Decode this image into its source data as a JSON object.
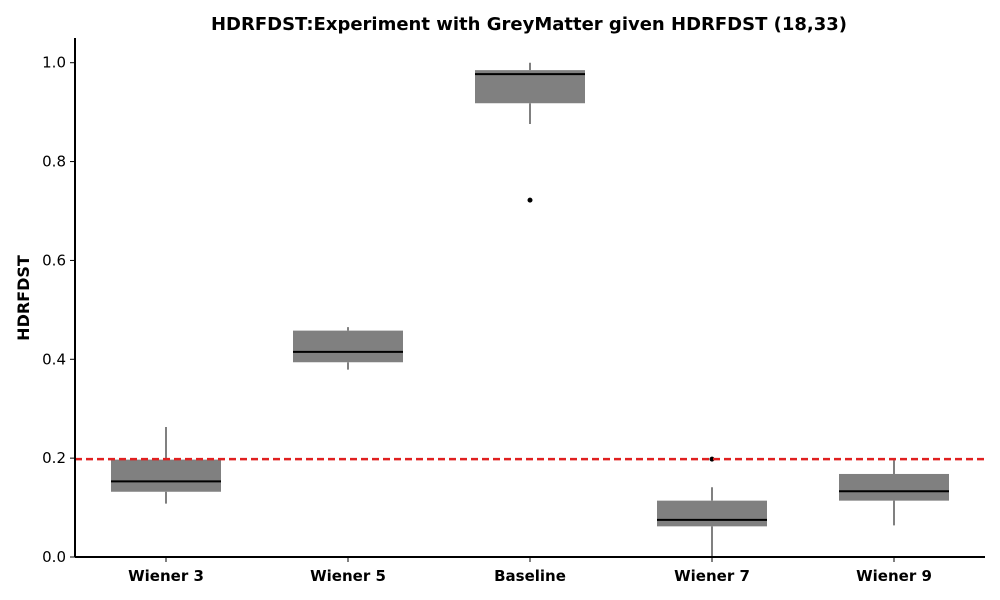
{
  "chart_data": {
    "type": "box",
    "title": "HDRFDST:Experiment with GreyMatter given HDRFDST (18,33)",
    "xlabel": "",
    "ylabel": "HDRFDST",
    "ylim": [
      0.0,
      1.05
    ],
    "yticks": [
      0.0,
      0.2,
      0.4,
      0.6,
      0.8,
      1.0
    ],
    "ytick_labels": [
      "0.0",
      "0.2",
      "0.4",
      "0.6",
      "0.8",
      "1.0"
    ],
    "grid": false,
    "categories": [
      "Wiener 3",
      "Wiener 5",
      "Baseline",
      "Wiener 7",
      "Wiener 9"
    ],
    "boxes": [
      {
        "category": "Wiener 3",
        "whisker_low": 0.108,
        "q1": 0.132,
        "median": 0.153,
        "q3": 0.197,
        "whisker_high": 0.263,
        "outliers": []
      },
      {
        "category": "Wiener 5",
        "whisker_low": 0.379,
        "q1": 0.394,
        "median": 0.415,
        "q3": 0.458,
        "whisker_high": 0.465,
        "outliers": []
      },
      {
        "category": "Baseline",
        "whisker_low": 0.876,
        "q1": 0.918,
        "median": 0.977,
        "q3": 0.985,
        "whisker_high": 1.0,
        "outliers": [
          0.722
        ]
      },
      {
        "category": "Wiener 7",
        "whisker_low": 0.0,
        "q1": 0.062,
        "median": 0.075,
        "q3": 0.114,
        "whisker_high": 0.141,
        "outliers": [
          0.198
        ]
      },
      {
        "category": "Wiener 9",
        "whisker_low": 0.064,
        "q1": 0.114,
        "median": 0.133,
        "q3": 0.168,
        "whisker_high": 0.196,
        "outliers": []
      }
    ],
    "reference_line": {
      "y": 0.198,
      "style": "dashed"
    },
    "colors": {
      "box_fill": "#808080",
      "median": "#000000",
      "whisker": "#000000",
      "outlier": "#000000",
      "reference_line": "#e02020",
      "axis": "#000000"
    }
  }
}
